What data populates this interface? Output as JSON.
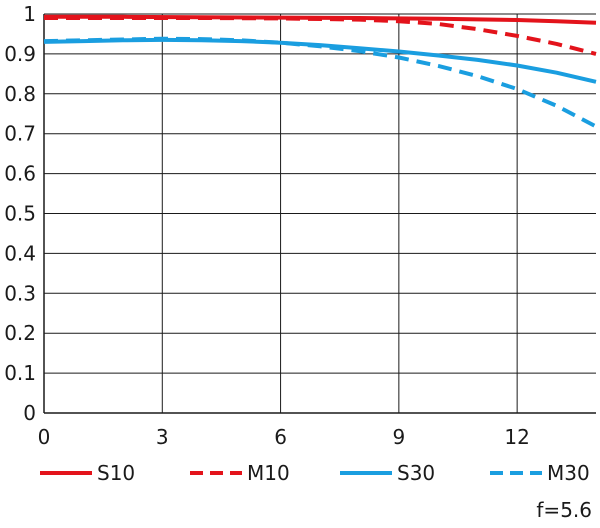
{
  "chart_data": {
    "type": "line",
    "title": "",
    "xlabel": "",
    "ylabel": "",
    "xlim": [
      0,
      14
    ],
    "ylim": [
      0,
      1
    ],
    "x_ticks": [
      0,
      3,
      6,
      9,
      12
    ],
    "x_tick_labels": [
      "0",
      "3",
      "6",
      "9",
      "12"
    ],
    "y_ticks": [
      0,
      0.1,
      0.2,
      0.3,
      0.4,
      0.5,
      0.6,
      0.7,
      0.8,
      0.9,
      1
    ],
    "y_tick_labels": [
      "0",
      "0.1",
      "0.2",
      "0.3",
      "0.4",
      "0.5",
      "0.6",
      "0.7",
      "0.8",
      "0.9",
      "1"
    ],
    "grid": true,
    "legend_position": "bottom",
    "series": [
      {
        "name": "S10",
        "color": "#e3131b",
        "dash": "solid",
        "x": [
          0,
          2,
          4,
          6,
          8,
          10,
          12,
          13,
          14
        ],
        "y": [
          0.993,
          0.993,
          0.992,
          0.991,
          0.99,
          0.988,
          0.985,
          0.982,
          0.978
        ]
      },
      {
        "name": "M10",
        "color": "#e3131b",
        "dash": "dashed",
        "x": [
          0,
          2,
          4,
          6,
          8,
          9,
          10,
          11,
          12,
          13,
          14
        ],
        "y": [
          0.99,
          0.99,
          0.99,
          0.989,
          0.986,
          0.982,
          0.975,
          0.962,
          0.945,
          0.925,
          0.9
        ]
      },
      {
        "name": "S30",
        "color": "#1a9ee0",
        "dash": "solid",
        "x": [
          0,
          1,
          2,
          3,
          4,
          5,
          6,
          7,
          8,
          9,
          10,
          11,
          12,
          13,
          14
        ],
        "y": [
          0.93,
          0.932,
          0.934,
          0.935,
          0.934,
          0.932,
          0.928,
          0.922,
          0.914,
          0.906,
          0.896,
          0.885,
          0.871,
          0.853,
          0.83
        ]
      },
      {
        "name": "M30",
        "color": "#1a9ee0",
        "dash": "dashed",
        "x": [
          0,
          1,
          2,
          3,
          4,
          5,
          6,
          7,
          8,
          9,
          10,
          11,
          12,
          13,
          14
        ],
        "y": [
          0.932,
          0.934,
          0.936,
          0.938,
          0.937,
          0.934,
          0.928,
          0.919,
          0.907,
          0.891,
          0.87,
          0.844,
          0.812,
          0.77,
          0.718
        ]
      }
    ],
    "footnote": "f=5.6"
  }
}
